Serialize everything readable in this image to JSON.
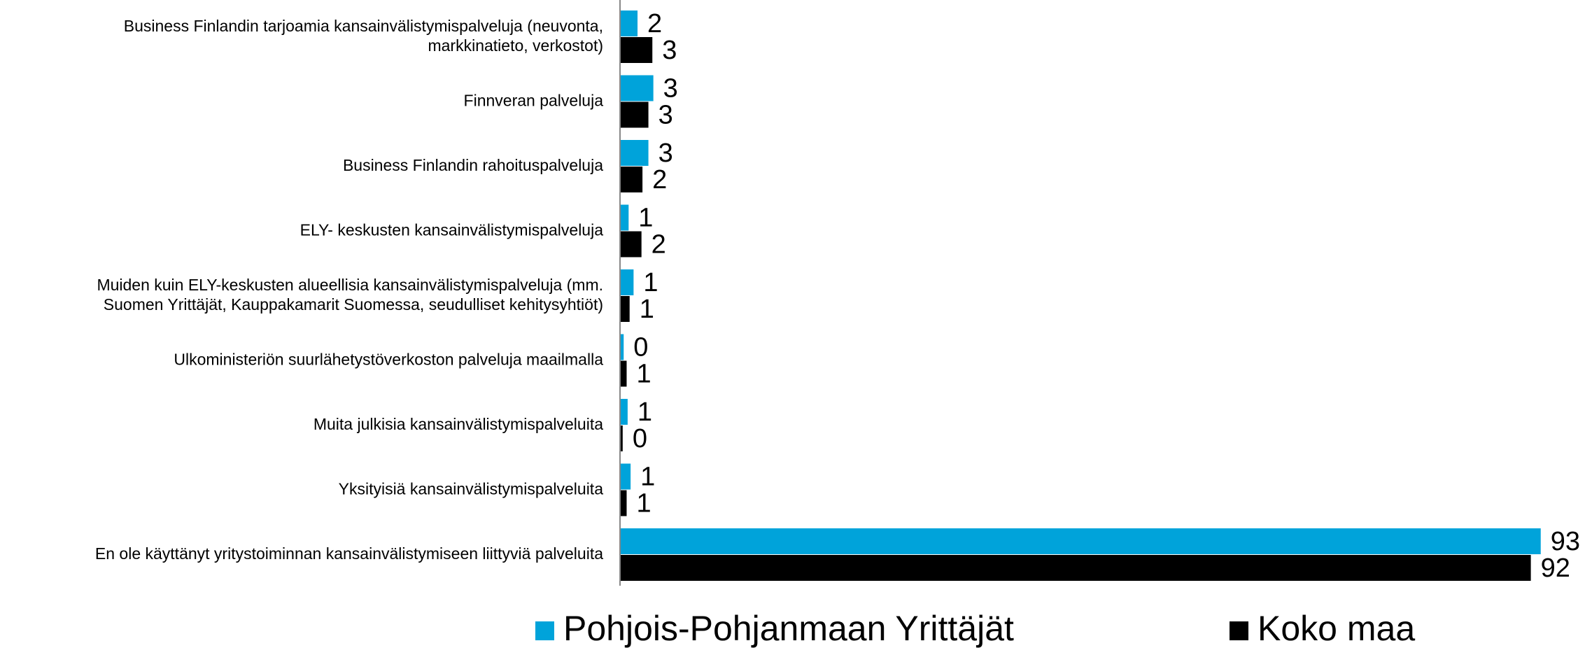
{
  "chart_data": {
    "type": "bar",
    "orientation": "horizontal",
    "categories": [
      "Business Finlandin tarjoamia kansainvälistymispalveluja (neuvonta,\nmarkkinatieto, verkostot)",
      "Finnveran palveluja",
      "Business Finlandin rahoituspalveluja",
      "ELY- keskusten kansainvälistymispalveluja",
      "Muiden kuin ELY-keskusten alueellisia kansainvälistymispalveluja (mm.\nSuomen Yrittäjät, Kauppakamarit Suomessa, seudulliset kehitysyhtiöt)",
      "Ulkoministeriön suurlähetystöverkoston palveluja maailmalla",
      "Muita julkisia kansainvälistymispalveluita",
      "Yksityisiä kansainvälistymispalveluita",
      "En ole käyttänyt yritystoiminnan kansainvälistymiseen liittyviä palveluita"
    ],
    "series": [
      {
        "name": "Pohjois-Pohjanmaan Yrittäjät",
        "color": "#00a3da",
        "values": [
          1.7,
          3.3,
          2.8,
          0.8,
          1.3,
          0.3,
          0.7,
          1.0,
          93
        ],
        "value_labels": [
          "2",
          "3",
          "3",
          "1",
          "1",
          "0",
          "1",
          "1",
          "93"
        ]
      },
      {
        "name": "Koko maa",
        "color": "#000000",
        "values": [
          3.2,
          2.8,
          2.2,
          2.1,
          0.9,
          0.6,
          0.2,
          0.6,
          92
        ],
        "value_labels": [
          "3",
          "3",
          "2",
          "2",
          "1",
          "1",
          "0",
          "1",
          "92"
        ]
      }
    ],
    "xlim": [
      0,
      95
    ],
    "legend": "bottom"
  }
}
